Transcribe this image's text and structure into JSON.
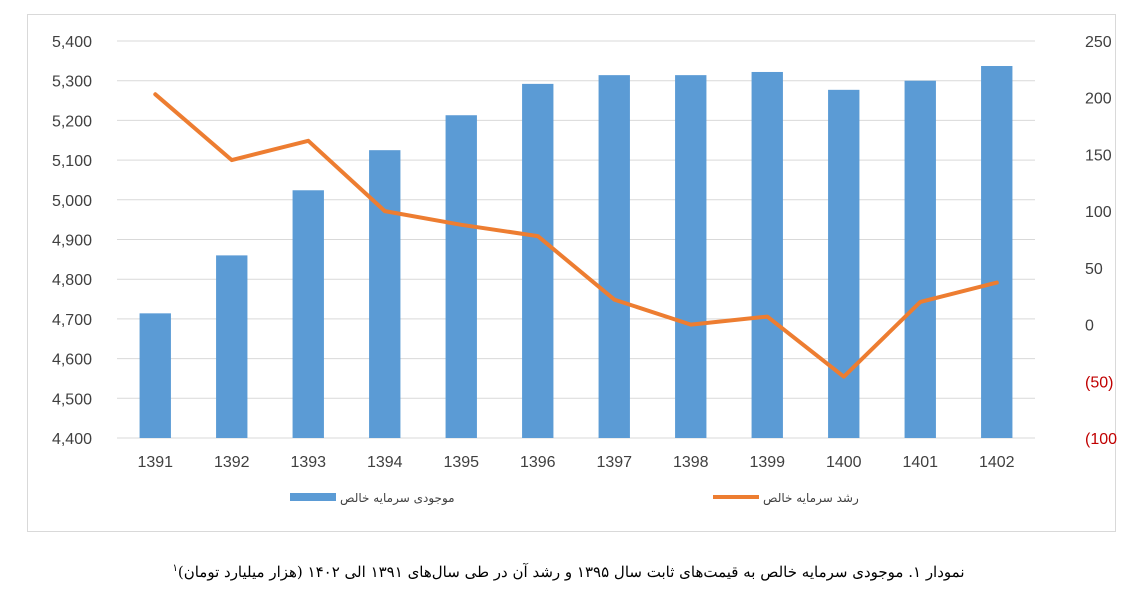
{
  "caption": {
    "text": "نمودار ۱. موجودی سرمایه خالص به قیمت‌های ثابت سال ۱۳۹۵ و رشد آن در طی سال‌های ۱۳۹۱ الی ۱۴۰۲ (هزار میلیارد تومان)",
    "footnote": "۱"
  },
  "chart_data": {
    "type": "bar",
    "categories": [
      "1391",
      "1392",
      "1393",
      "1394",
      "1395",
      "1396",
      "1397",
      "1398",
      "1399",
      "1400",
      "1401",
      "1402"
    ],
    "series": [
      {
        "name": "موجودی سرمایه خالص",
        "type": "bar",
        "axis": "left",
        "color": "#5b9bd5",
        "values": [
          4714,
          4860,
          5024,
          5125,
          5213,
          5292,
          5314,
          5314,
          5322,
          5277,
          5300,
          5337
        ]
      },
      {
        "name": "رشد سرمایه خالص",
        "type": "line",
        "axis": "right",
        "color": "#ed7d31",
        "values": [
          203,
          145,
          162,
          100,
          88,
          78,
          22,
          0,
          7,
          -46,
          20,
          37
        ]
      }
    ],
    "y_left": {
      "min": 4400,
      "max": 5400,
      "step": 100,
      "tick_labels": [
        "4,400",
        "4,500",
        "4,600",
        "4,700",
        "4,800",
        "4,900",
        "5,000",
        "5,100",
        "5,200",
        "5,300",
        "5,400"
      ]
    },
    "y_right": {
      "min": -100,
      "max": 250,
      "step": 50,
      "tick_labels": [
        "(100)",
        "(50)",
        "0",
        "50",
        "100",
        "150",
        "200",
        "250"
      ],
      "negative_color": "#c00000"
    },
    "grid": "horizontal",
    "legend_position": "bottom"
  }
}
